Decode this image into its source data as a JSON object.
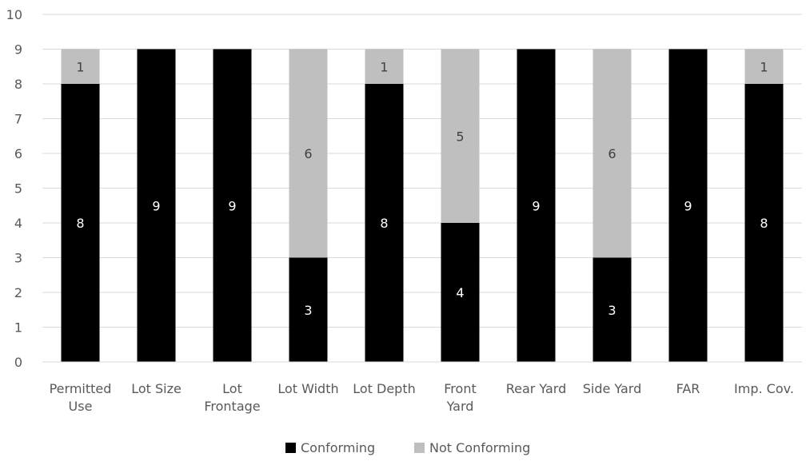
{
  "chart_data": {
    "type": "bar",
    "stacked": true,
    "categories": [
      "Permitted Use",
      "Lot Size",
      "Lot Frontage",
      "Lot Width",
      "Lot Depth",
      "Front Yard",
      "Rear Yard",
      "Side Yard",
      "FAR",
      "Imp. Cov."
    ],
    "category_lines": [
      [
        "Permitted",
        "Use"
      ],
      [
        "Lot Size"
      ],
      [
        "Lot",
        "Frontage"
      ],
      [
        "Lot Width"
      ],
      [
        "Lot Depth"
      ],
      [
        "Front",
        "Yard"
      ],
      [
        "Rear Yard"
      ],
      [
        "Side Yard"
      ],
      [
        "FAR"
      ],
      [
        "Imp. Cov."
      ]
    ],
    "series": [
      {
        "name": "Conforming",
        "color": "#000000",
        "label_color": "#ffffff",
        "values": [
          8,
          9,
          9,
          3,
          8,
          4,
          9,
          3,
          9,
          8
        ]
      },
      {
        "name": "Not Conforming",
        "color": "#bfbfbf",
        "label_color": "#404040",
        "values": [
          1,
          0,
          0,
          6,
          1,
          5,
          0,
          6,
          0,
          1
        ]
      }
    ],
    "ylim": [
      0,
      10
    ],
    "yticks": [
      0,
      1,
      2,
      3,
      4,
      5,
      6,
      7,
      8,
      9,
      10
    ],
    "grid": true,
    "legend": "bottom",
    "title": "",
    "xlabel": "",
    "ylabel": ""
  }
}
